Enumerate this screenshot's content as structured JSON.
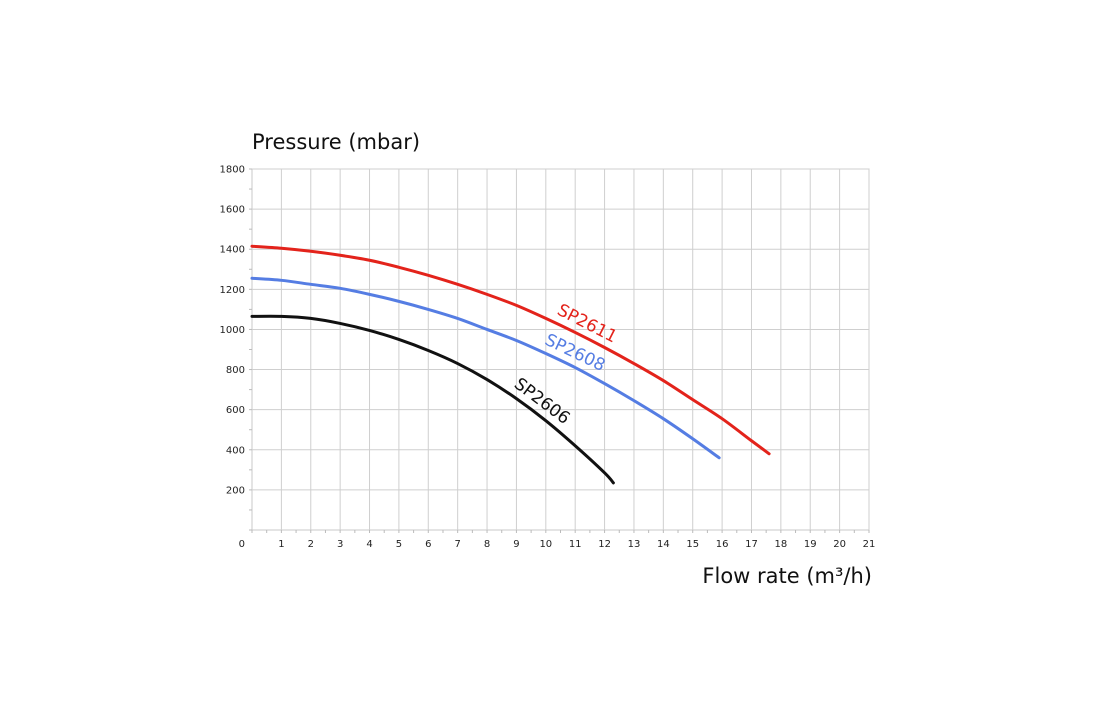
{
  "chart_data": {
    "type": "line",
    "ylabel": "Pressure (mbar)",
    "xlabel": "Flow rate (m³/h)",
    "xlim": [
      0,
      21
    ],
    "ylim": [
      0,
      1800
    ],
    "x_ticks": [
      1,
      2,
      3,
      4,
      5,
      6,
      7,
      8,
      9,
      10,
      11,
      12,
      13,
      14,
      15,
      16,
      17,
      18,
      19,
      20,
      21
    ],
    "y_ticks": [
      200,
      400,
      600,
      800,
      1000,
      1200,
      1400,
      1600,
      1800
    ],
    "origin_label": "0",
    "grid": true,
    "series": [
      {
        "name": "SP2611",
        "color": "#e3231b",
        "x": [
          0,
          1,
          2,
          3,
          4,
          5,
          6,
          7,
          8,
          9,
          10,
          11,
          12,
          13,
          14,
          15,
          16,
          17,
          17.6
        ],
        "y": [
          1415,
          1405,
          1390,
          1370,
          1345,
          1310,
          1270,
          1225,
          1175,
          1120,
          1055,
          985,
          910,
          830,
          745,
          650,
          555,
          445,
          380
        ]
      },
      {
        "name": "SP2608",
        "color": "#557de3",
        "x": [
          0,
          1,
          2,
          3,
          4,
          5,
          6,
          7,
          8,
          9,
          10,
          11,
          12,
          13,
          14,
          15,
          15.9
        ],
        "y": [
          1255,
          1245,
          1225,
          1205,
          1175,
          1140,
          1100,
          1055,
          1000,
          945,
          880,
          810,
          730,
          645,
          555,
          455,
          360
        ]
      },
      {
        "name": "SP2606",
        "color": "#111111",
        "x": [
          0,
          1,
          2,
          3,
          4,
          5,
          6,
          7,
          8,
          9,
          10,
          11,
          12,
          12.3
        ],
        "y": [
          1065,
          1065,
          1055,
          1030,
          995,
          950,
          895,
          830,
          750,
          655,
          545,
          420,
          285,
          235
        ]
      }
    ]
  }
}
